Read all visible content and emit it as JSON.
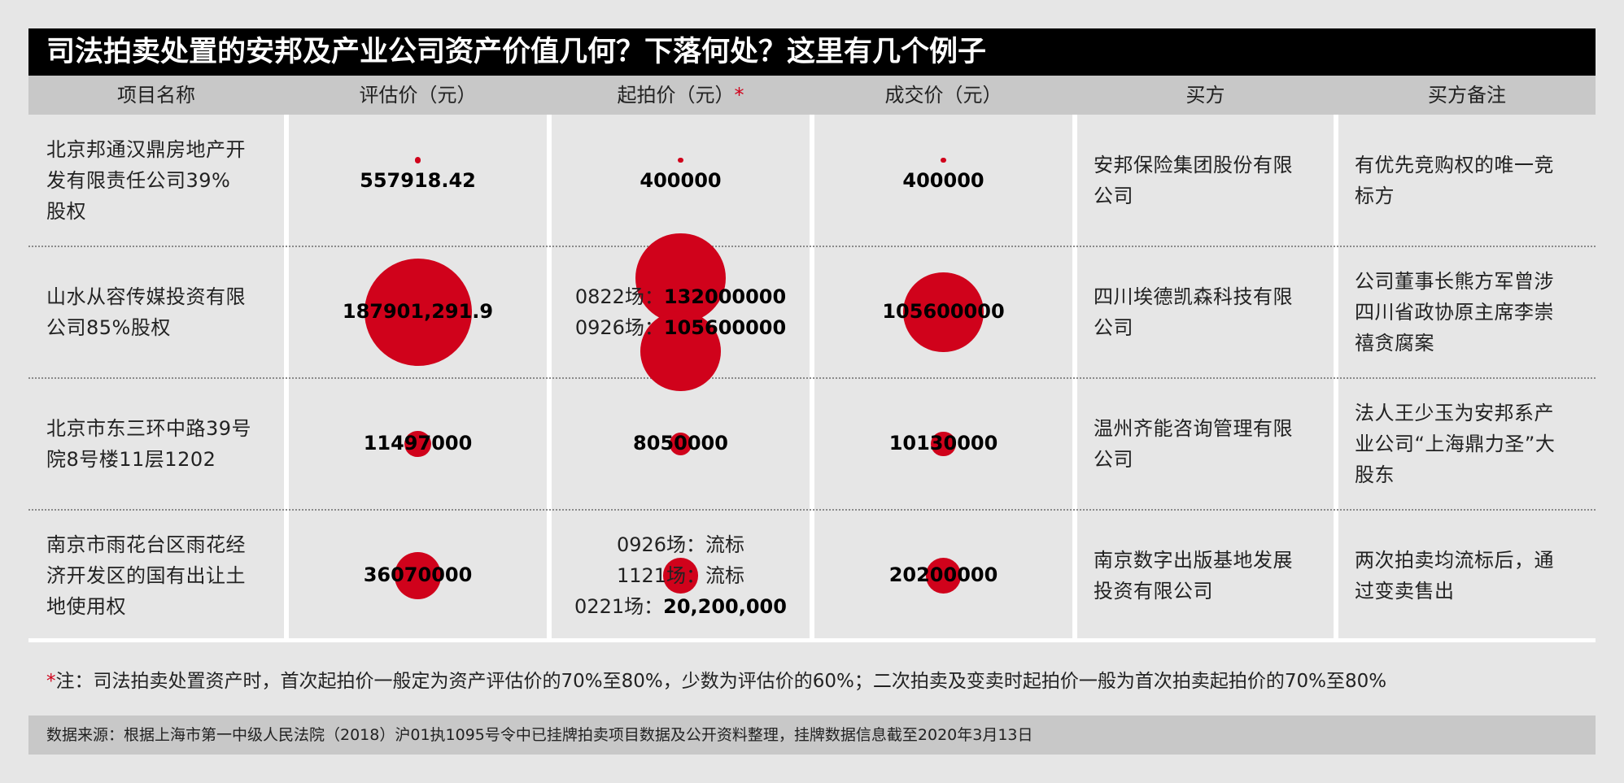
{
  "chart_data": {
    "type": "table",
    "title": "司法拍卖处置的安邦及产业公司资产价值几何？下落何处？这里有几个例子",
    "columns": [
      "项目名称",
      "评估价（元）",
      "起拍价（元）",
      "成交价（元）",
      "买方",
      "买方备注"
    ],
    "start_price_star": "*",
    "rows": [
      {
        "name": "北京邦通汉鼎房地产开发有限责任公司39%股权",
        "name_lines": [
          "北京邦通汉鼎房地产开",
          "发有限责任公司39%",
          "股权"
        ],
        "appraisal_label": "557918.42",
        "appraisal_value": 557918.42,
        "start_price_lines": [
          {
            "prefix": "",
            "text": "400000"
          }
        ],
        "start_price_values": [
          400000
        ],
        "deal_label": "400000",
        "deal_value": 400000,
        "buyer_lines": [
          "安邦保险集团股份有限",
          "公司"
        ],
        "note_lines": [
          "有优先竞购权的唯一竞",
          "标方"
        ]
      },
      {
        "name": "山水从容传媒投资有限公司85%股权",
        "name_lines": [
          "山水从容传媒投资有限",
          "公司85%股权"
        ],
        "appraisal_label": "187901,291.9",
        "appraisal_value": 187901291.9,
        "start_price_lines": [
          {
            "prefix": "0822场：",
            "text": "132000000"
          },
          {
            "prefix": "0926场：",
            "text": "105600000"
          }
        ],
        "start_price_values": [
          132000000,
          105600000
        ],
        "deal_label": "105600000",
        "deal_value": 105600000,
        "buyer_lines": [
          "四川埃德凯森科技有限",
          "公司"
        ],
        "note_lines": [
          "公司董事长熊方军曾涉",
          "四川省政协原主席李崇",
          "禧贪腐案"
        ]
      },
      {
        "name": "北京市东三环中路39号院8号楼11层1202",
        "name_lines": [
          "北京市东三环中路39号",
          "院8号楼11层1202"
        ],
        "appraisal_label": "11497000",
        "appraisal_value": 11497000,
        "start_price_lines": [
          {
            "prefix": "",
            "text": "8050000"
          }
        ],
        "start_price_values": [
          8050000
        ],
        "deal_label": "10130000",
        "deal_value": 10130000,
        "buyer_lines": [
          "温州齐能咨询管理有限",
          "公司"
        ],
        "note_lines": [
          "法人王少玉为安邦系产",
          "业公司“上海鼎力圣”大",
          "股东"
        ]
      },
      {
        "name": "南京市雨花台区雨花经济开发区的国有出让土地使用权",
        "name_lines": [
          "南京市雨花台区雨花经",
          "济开发区的国有出让土",
          "地使用权"
        ],
        "appraisal_label": "36070000",
        "appraisal_value": 36070000,
        "start_price_lines": [
          {
            "prefix": "0926场：",
            "text": "流标"
          },
          {
            "prefix": "1121场：",
            "text": "流标"
          },
          {
            "prefix": "0221场：",
            "text": "20,200,000"
          }
        ],
        "start_price_values": [
          20200000
        ],
        "deal_label": "20200000",
        "deal_value": 20200000,
        "buyer_lines": [
          "南京数字出版基地发展",
          "投资有限公司"
        ],
        "note_lines": [
          "两次拍卖均流标后，通",
          "过变卖售出"
        ]
      }
    ],
    "bubble_color": "#d0021b"
  },
  "footnote": {
    "star": "*",
    "text": "注：司法拍卖处置资产时，首次起拍价一般定为资产评估价的70%至80%，少数为评估价的60%；二次拍卖及变卖时起拍价一般为首次拍卖起拍价的70%至80%"
  },
  "source": "数据来源：根据上海市第一中级人民法院（2018）沪01执1095号令中已挂牌拍卖项目数据及公开资料整理，挂牌数据信息截至2020年3月13日"
}
